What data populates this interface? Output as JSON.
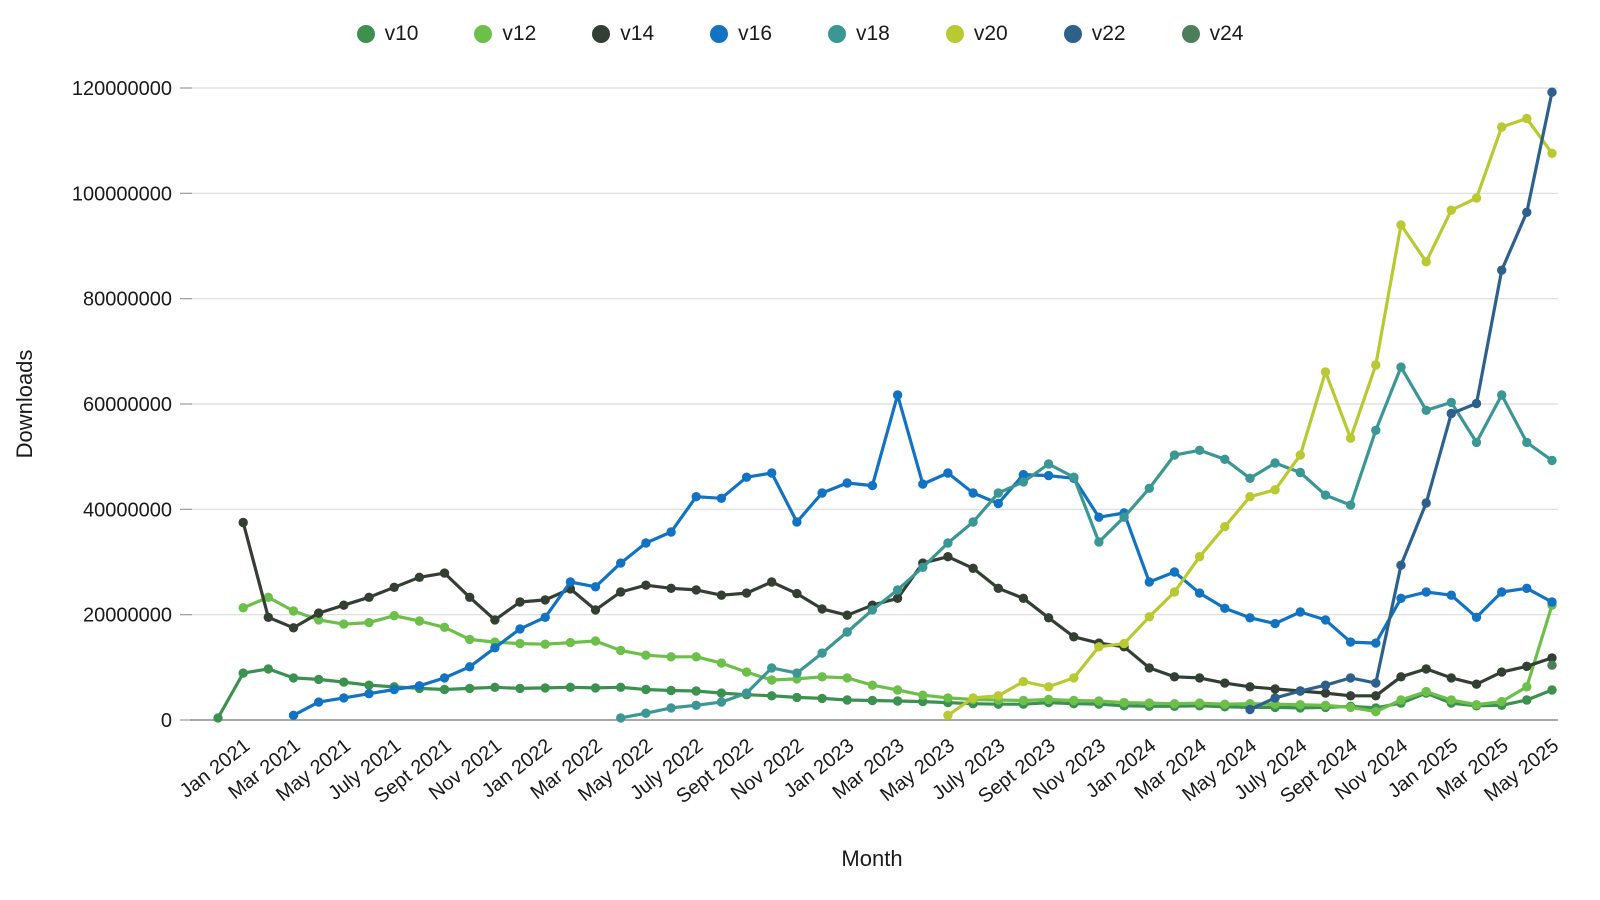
{
  "chart_data": {
    "type": "line",
    "title": "",
    "xlabel": "Month",
    "ylabel": "Downloads",
    "values_in": "millions_of_downloads",
    "ylim": [
      0,
      120000000
    ],
    "y_ticks": [
      0,
      20000000,
      40000000,
      60000000,
      80000000,
      100000000,
      120000000
    ],
    "grid": "horizontal",
    "legend_position": "top-center",
    "x_tick_start": 1,
    "x_tick_step": 2,
    "x": [
      "Dec 2020",
      "Jan 2021",
      "Feb 2021",
      "Mar 2021",
      "Apr 2021",
      "May 2021",
      "June 2021",
      "July 2021",
      "Aug 2021",
      "Sept 2021",
      "Oct 2021",
      "Nov 2021",
      "Dec 2021",
      "Jan 2022",
      "Feb 2022",
      "Mar 2022",
      "Apr 2022",
      "May 2022",
      "June 2022",
      "July 2022",
      "Aug 2022",
      "Sept 2022",
      "Oct 2022",
      "Nov 2022",
      "Dec 2022",
      "Jan 2023",
      "Feb 2023",
      "Mar 2023",
      "Apr 2023",
      "May 2023",
      "June 2023",
      "July 2023",
      "Aug 2023",
      "Sept 2023",
      "Oct 2023",
      "Nov 2023",
      "Dec 2023",
      "Jan 2024",
      "Feb 2024",
      "Mar 2024",
      "Apr 2024",
      "May 2024",
      "June 2024",
      "July 2024",
      "Aug 2024",
      "Sept 2024",
      "Oct 2024",
      "Nov 2024",
      "Dec 2024",
      "Jan 2025",
      "Feb 2025",
      "Mar 2025",
      "Apr 2025",
      "May 2025"
    ],
    "series": [
      {
        "name": "v10",
        "color": "#3d9150",
        "values": [
          0.4,
          8.9,
          9.7,
          8.0,
          7.7,
          7.2,
          6.6,
          6.3,
          6.0,
          5.8,
          6.0,
          6.2,
          6.0,
          6.1,
          6.2,
          6.1,
          6.2,
          5.8,
          5.6,
          5.5,
          5.1,
          4.8,
          4.6,
          4.3,
          4.1,
          3.8,
          3.7,
          3.6,
          3.5,
          3.3,
          3.1,
          3.0,
          3.0,
          3.3,
          3.1,
          3.0,
          2.7,
          2.6,
          2.6,
          2.7,
          2.5,
          2.4,
          2.4,
          2.3,
          2.4,
          2.6,
          2.3,
          3.2,
          5.1,
          3.2,
          2.7,
          2.8,
          3.8,
          5.7
        ]
      },
      {
        "name": "v12",
        "color": "#6cc04a",
        "values": [
          null,
          21.3,
          23.3,
          20.7,
          19.0,
          18.2,
          18.5,
          19.8,
          18.8,
          17.6,
          15.3,
          14.8,
          14.5,
          14.4,
          14.7,
          15.0,
          13.2,
          12.3,
          12.0,
          12.0,
          10.8,
          9.1,
          7.6,
          7.8,
          8.2,
          8.0,
          6.6,
          5.7,
          4.7,
          4.2,
          3.9,
          3.8,
          3.7,
          3.9,
          3.7,
          3.6,
          3.3,
          3.2,
          3.1,
          3.2,
          3.0,
          3.1,
          3.0,
          2.9,
          2.8,
          2.4,
          1.6,
          3.8,
          5.4,
          3.8,
          2.9,
          3.5,
          6.3,
          21.8
        ]
      },
      {
        "name": "v14",
        "color": "#333f33",
        "values": [
          null,
          37.5,
          19.5,
          17.5,
          20.3,
          21.8,
          23.3,
          25.2,
          27.1,
          27.9,
          23.3,
          19.0,
          22.4,
          22.8,
          24.9,
          20.9,
          24.3,
          25.6,
          25.0,
          24.7,
          23.7,
          24.1,
          26.2,
          24.0,
          21.1,
          19.9,
          21.8,
          23.1,
          29.8,
          31.0,
          28.8,
          25.0,
          23.1,
          19.4,
          15.8,
          14.6,
          13.9,
          9.9,
          8.2,
          8.0,
          7.0,
          6.3,
          5.9,
          5.5,
          5.1,
          4.6,
          4.6,
          8.2,
          9.7,
          8.0,
          6.8,
          9.1,
          10.2,
          11.8
        ]
      },
      {
        "name": "v16",
        "color": "#1173c1",
        "values": [
          null,
          null,
          null,
          0.9,
          3.4,
          4.2,
          5.0,
          5.8,
          6.5,
          8.0,
          10.1,
          13.7,
          17.3,
          19.5,
          26.2,
          25.3,
          29.8,
          33.6,
          35.7,
          42.4,
          42.1,
          46.1,
          46.9,
          37.6,
          43.1,
          45.0,
          44.5,
          61.7,
          44.8,
          46.9,
          43.1,
          41.1,
          46.6,
          46.4,
          45.9,
          38.5,
          39.3,
          26.2,
          28.1,
          24.1,
          21.2,
          19.4,
          18.3,
          20.5,
          19.0,
          14.8,
          14.6,
          23.1,
          24.3,
          23.7,
          19.5,
          24.3,
          25.0,
          22.4
        ]
      },
      {
        "name": "v18",
        "color": "#3a9793",
        "values": [
          null,
          null,
          null,
          null,
          null,
          null,
          null,
          null,
          null,
          null,
          null,
          null,
          null,
          null,
          null,
          null,
          0.4,
          1.3,
          2.3,
          2.8,
          3.4,
          5.1,
          9.9,
          8.9,
          12.7,
          16.7,
          20.9,
          24.7,
          29.0,
          33.6,
          37.6,
          43.1,
          45.2,
          48.6,
          46.1,
          33.8,
          38.5,
          44.0,
          50.3,
          51.2,
          49.5,
          45.9,
          48.8,
          47.0,
          42.7,
          40.8,
          55.0,
          67.0,
          58.8,
          60.3,
          52.7,
          61.7,
          52.7,
          49.3
        ]
      },
      {
        "name": "v20",
        "color": "#b8c932",
        "values": [
          null,
          null,
          null,
          null,
          null,
          null,
          null,
          null,
          null,
          null,
          null,
          null,
          null,
          null,
          null,
          null,
          null,
          null,
          null,
          null,
          null,
          null,
          null,
          null,
          null,
          null,
          null,
          null,
          null,
          0.9,
          4.2,
          4.6,
          7.3,
          6.3,
          8.0,
          13.9,
          14.5,
          19.6,
          24.3,
          31.0,
          36.7,
          42.4,
          43.7,
          50.3,
          66.1,
          53.5,
          67.4,
          94.0,
          87.0,
          96.8,
          99.1,
          112.6,
          114.2,
          107.6
        ]
      },
      {
        "name": "v22",
        "color": "#2e608c",
        "values": [
          null,
          null,
          null,
          null,
          null,
          null,
          null,
          null,
          null,
          null,
          null,
          null,
          null,
          null,
          null,
          null,
          null,
          null,
          null,
          null,
          null,
          null,
          null,
          null,
          null,
          null,
          null,
          null,
          null,
          null,
          null,
          null,
          null,
          null,
          null,
          null,
          null,
          null,
          null,
          null,
          null,
          2.0,
          4.2,
          5.5,
          6.6,
          8.0,
          7.0,
          29.4,
          41.2,
          58.2,
          60.1,
          85.4,
          96.4,
          119.2
        ]
      },
      {
        "name": "v24",
        "color": "#4e7d5b",
        "values": [
          null,
          null,
          null,
          null,
          null,
          null,
          null,
          null,
          null,
          null,
          null,
          null,
          null,
          null,
          null,
          null,
          null,
          null,
          null,
          null,
          null,
          null,
          null,
          null,
          null,
          null,
          null,
          null,
          null,
          null,
          null,
          null,
          null,
          null,
          null,
          null,
          null,
          null,
          null,
          null,
          null,
          null,
          null,
          null,
          null,
          null,
          null,
          null,
          null,
          null,
          null,
          null,
          null,
          10.4
        ]
      }
    ]
  }
}
